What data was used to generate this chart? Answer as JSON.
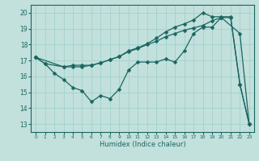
{
  "title": "",
  "xlabel": "Humidex (Indice chaleur)",
  "bg_color": "#c2e0dc",
  "line_color": "#1a6660",
  "grid_color": "#9ececa",
  "xlim": [
    -0.5,
    23.5
  ],
  "ylim": [
    12.5,
    20.5
  ],
  "xticks": [
    0,
    1,
    2,
    3,
    4,
    5,
    6,
    7,
    8,
    9,
    10,
    11,
    12,
    13,
    14,
    15,
    16,
    17,
    18,
    19,
    20,
    21,
    22,
    23
  ],
  "yticks": [
    13,
    14,
    15,
    16,
    17,
    18,
    19,
    20
  ],
  "curve1_x": [
    0,
    1,
    2,
    3,
    4,
    5,
    6,
    7,
    8,
    9,
    10,
    11,
    12,
    13,
    14,
    15,
    16,
    17,
    18,
    19,
    20,
    22,
    23
  ],
  "curve1_y": [
    17.2,
    16.8,
    16.2,
    15.8,
    15.3,
    15.1,
    14.4,
    14.8,
    14.6,
    15.2,
    16.4,
    16.9,
    16.9,
    16.9,
    17.1,
    16.9,
    17.6,
    18.7,
    19.1,
    19.1,
    19.7,
    18.7,
    13.0
  ],
  "curve2_x": [
    0,
    1,
    3,
    4,
    5,
    6,
    7,
    8,
    9,
    10,
    11,
    12,
    13,
    14,
    15,
    16,
    17,
    18,
    19,
    20,
    21,
    22,
    23
  ],
  "curve2_y": [
    17.2,
    16.8,
    16.6,
    16.6,
    16.6,
    16.7,
    16.85,
    17.05,
    17.25,
    17.55,
    17.75,
    18.0,
    18.2,
    18.5,
    18.7,
    18.9,
    19.05,
    19.2,
    19.5,
    19.7,
    19.7,
    15.5,
    13.0
  ],
  "curve3_x": [
    0,
    3,
    4,
    5,
    6,
    7,
    8,
    9,
    10,
    11,
    12,
    13,
    14,
    15,
    16,
    17,
    18,
    19,
    20,
    21,
    22,
    23
  ],
  "curve3_y": [
    17.2,
    16.6,
    16.7,
    16.7,
    16.7,
    16.85,
    17.05,
    17.25,
    17.6,
    17.8,
    18.05,
    18.4,
    18.8,
    19.1,
    19.3,
    19.55,
    20.0,
    19.75,
    19.75,
    19.75,
    15.5,
    13.0
  ]
}
